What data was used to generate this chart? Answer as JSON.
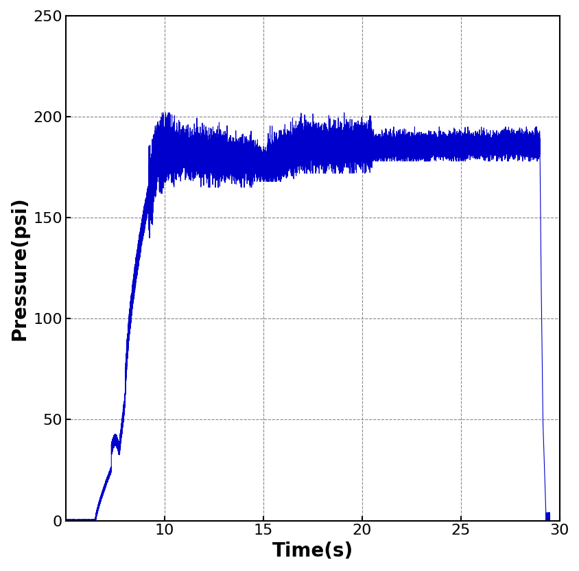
{
  "title": "",
  "xlabel": "Time(s)",
  "ylabel": "Pressure(psi)",
  "xlim": [
    5,
    30
  ],
  "ylim": [
    0,
    250
  ],
  "xticks": [
    10,
    15,
    20,
    25,
    30
  ],
  "yticks": [
    0,
    50,
    100,
    150,
    200,
    250
  ],
  "line_color": "#0000CC",
  "line_width": 0.8,
  "grid_color": "#888888",
  "grid_linestyle": "--",
  "grid_linewidth": 0.8,
  "background_color": "#ffffff",
  "xlabel_fontsize": 20,
  "ylabel_fontsize": 20,
  "tick_fontsize": 16,
  "seed": 42,
  "t_start": 5.0,
  "t_end": 30.0,
  "n_points": 30000
}
